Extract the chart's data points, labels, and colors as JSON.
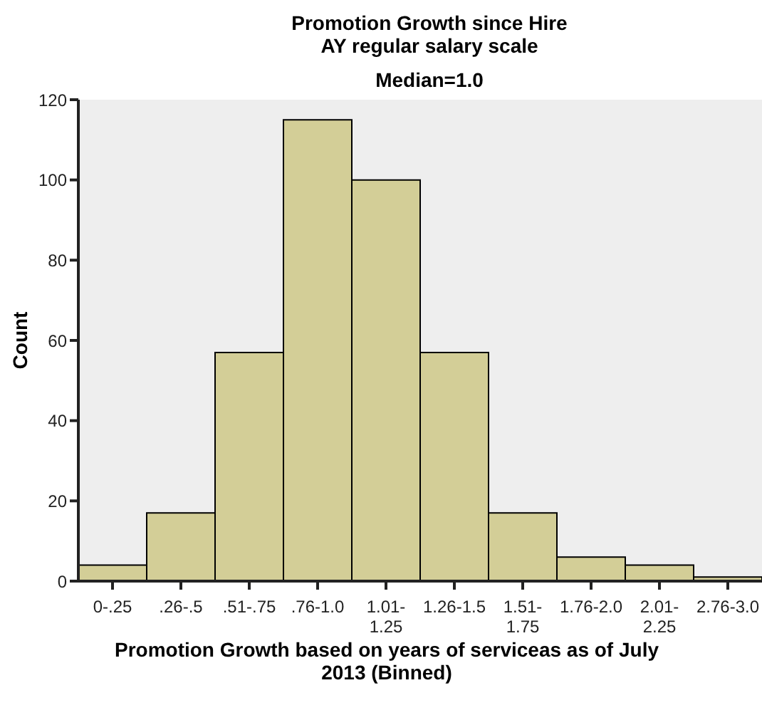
{
  "chart_data": {
    "type": "bar",
    "title": "Promotion Growth since Hire",
    "subtitle": "AY regular salary scale",
    "annotations": [
      "Median=1.0"
    ],
    "xlabel": "Promotion Growth based on years of serviceas as of July 2013 (Binned)",
    "ylabel": "Count",
    "categories": [
      "0-.25",
      ".26-.5",
      ".51-.75",
      ".76-1.0",
      "1.01-1.25",
      "1.26-1.5",
      "1.51-1.75",
      "1.76-2.0",
      "2.01-2.25",
      "2.76-3.0"
    ],
    "values": [
      4,
      17,
      57,
      115,
      100,
      57,
      17,
      6,
      4,
      1
    ],
    "color": "#d3ce97",
    "ylim": [
      0,
      120
    ],
    "yticks": [
      0,
      20,
      40,
      60,
      80,
      100,
      120
    ],
    "grid": false,
    "legend": false
  }
}
